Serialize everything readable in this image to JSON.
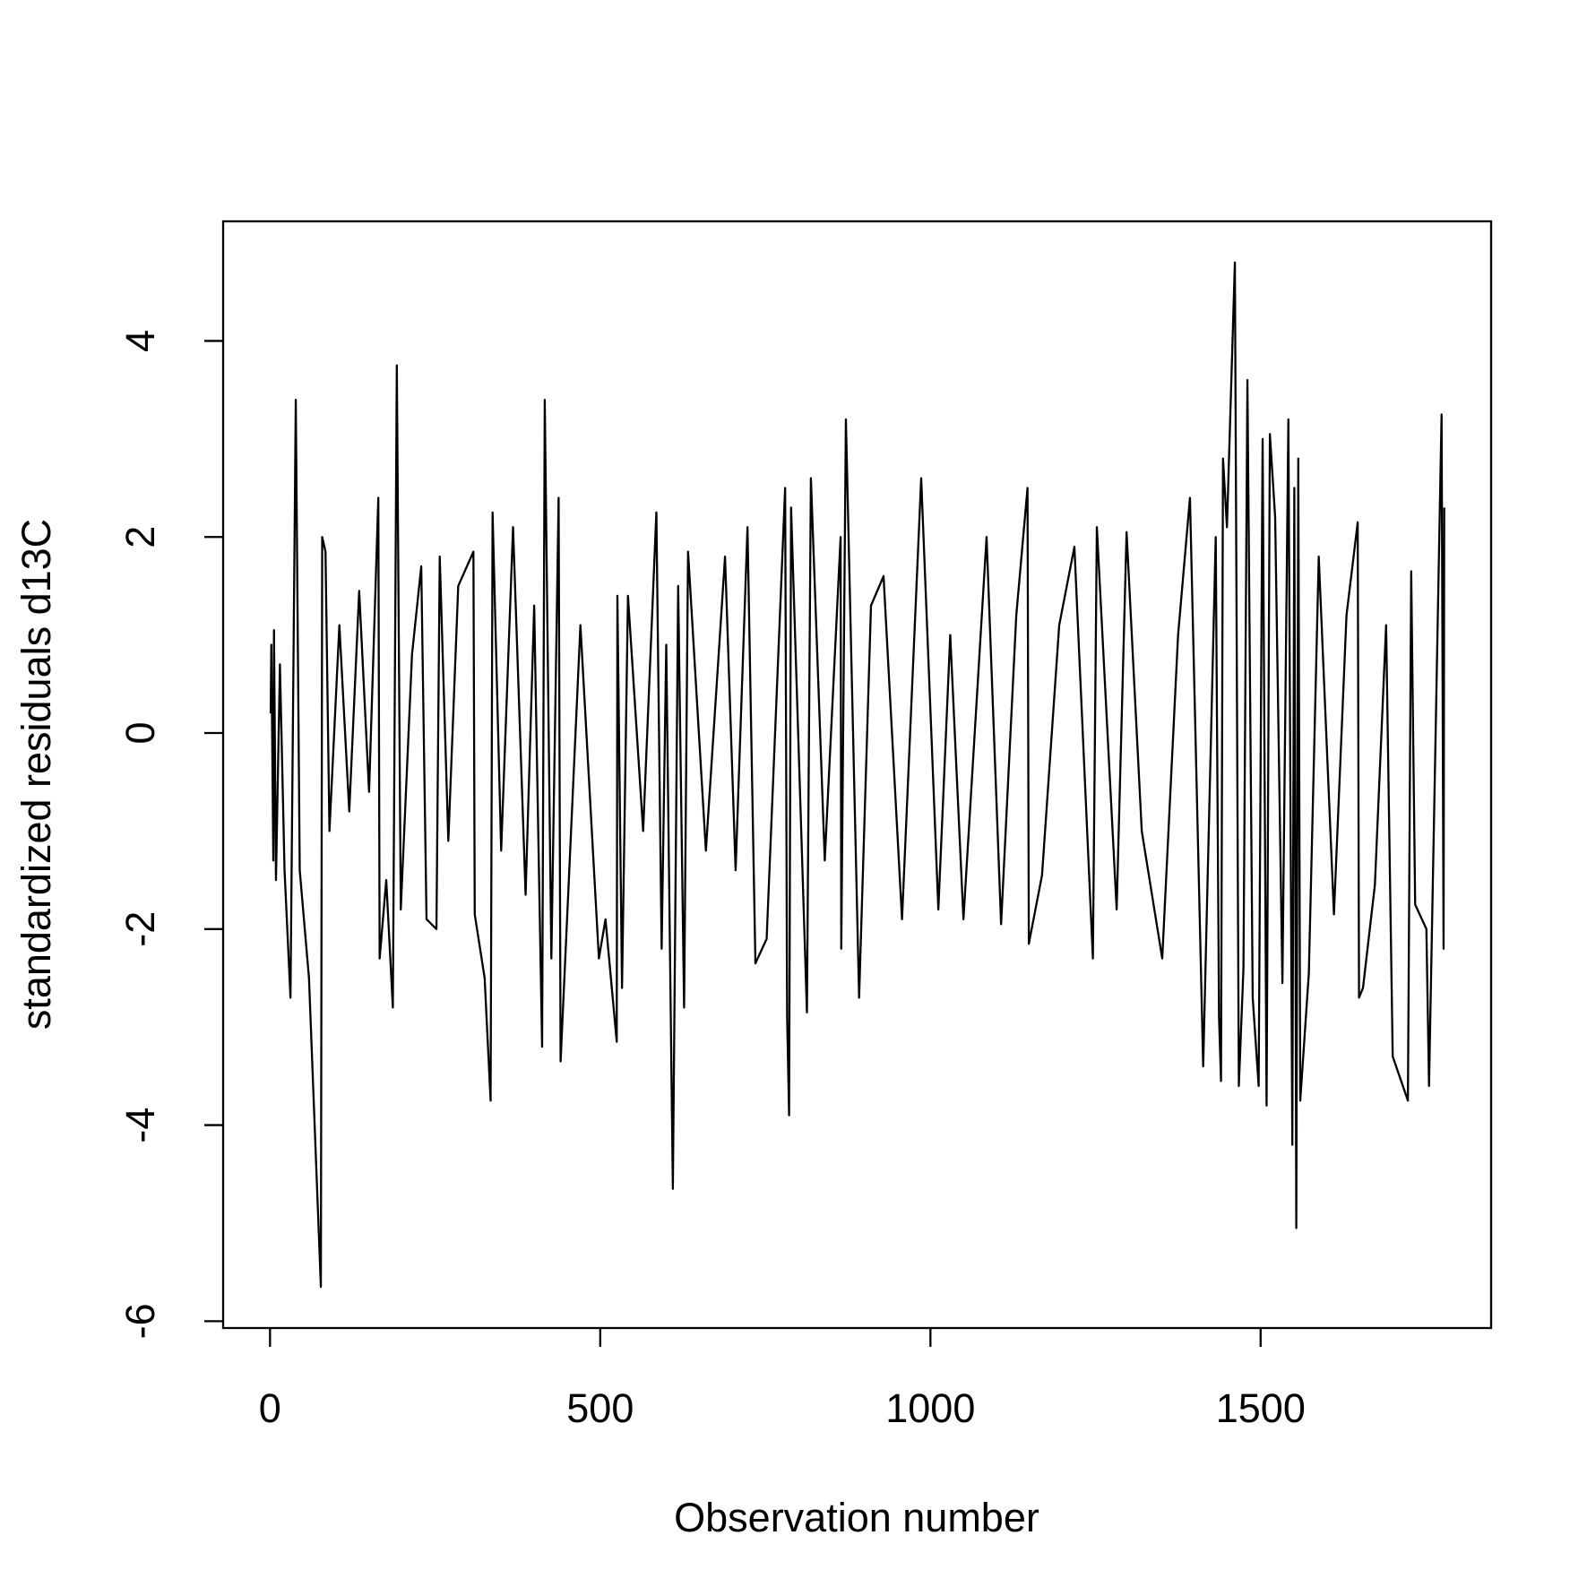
{
  "chart_data": {
    "type": "line",
    "x_label": "Observation number",
    "y_label": "standardized residuals d13C",
    "xlim": [
      -71,
      1849
    ],
    "ylim": [
      -6.07,
      5.22
    ],
    "xticks": [
      0,
      500,
      1000,
      1500
    ],
    "yticks": [
      -6,
      -4,
      -2,
      0,
      2,
      4
    ],
    "color": "#000000",
    "x": [
      1,
      2,
      5,
      6,
      9,
      15,
      22,
      31,
      39,
      45,
      59,
      77,
      79,
      84,
      90,
      105,
      120,
      135,
      150,
      164,
      166,
      176,
      186,
      192,
      198,
      215,
      229,
      237,
      252,
      257,
      270,
      285,
      308,
      310,
      325,
      334,
      337,
      350,
      368,
      387,
      400,
      412,
      416,
      426,
      437,
      440,
      470,
      498,
      508,
      525,
      526,
      533,
      542,
      565,
      585,
      593,
      600,
      610,
      618,
      627,
      633,
      660,
      689,
      705,
      723,
      735,
      752,
      780,
      783,
      786,
      789,
      813,
      819,
      840,
      864,
      865,
      872,
      892,
      910,
      929,
      957,
      986,
      1012,
      1030,
      1050,
      1085,
      1107,
      1130,
      1147,
      1149,
      1169,
      1195,
      1218,
      1246,
      1252,
      1282,
      1297,
      1320,
      1351,
      1375,
      1393,
      1413,
      1432,
      1437,
      1440,
      1443,
      1449,
      1461,
      1467,
      1474,
      1480,
      1488,
      1497,
      1503,
      1509,
      1514,
      1522,
      1533,
      1542,
      1548,
      1551,
      1554,
      1557,
      1560,
      1573,
      1588,
      1611,
      1630,
      1647,
      1649,
      1655,
      1673,
      1690,
      1700,
      1723,
      1728,
      1734,
      1751,
      1755,
      1774,
      1777,
      1778
    ],
    "values": [
      0.2,
      0.9,
      -1.3,
      1.05,
      -1.5,
      0.7,
      -1.4,
      -2.7,
      3.4,
      -1.4,
      -2.5,
      -5.65,
      2.0,
      1.85,
      -1.0,
      1.1,
      -0.8,
      1.45,
      -0.6,
      2.4,
      -2.3,
      -1.5,
      -2.8,
      3.75,
      -1.8,
      0.8,
      1.7,
      -1.9,
      -2.0,
      1.8,
      -1.1,
      1.5,
      1.85,
      -1.85,
      -2.5,
      -3.75,
      2.25,
      -1.2,
      2.1,
      -1.65,
      1.3,
      -3.2,
      3.4,
      -2.3,
      2.4,
      -3.35,
      1.1,
      -2.3,
      -1.9,
      -3.15,
      1.4,
      -2.6,
      1.4,
      -1.0,
      2.25,
      -2.2,
      0.9,
      -4.65,
      1.5,
      -2.8,
      1.85,
      -1.2,
      1.8,
      -1.4,
      2.1,
      -2.35,
      -2.1,
      2.5,
      -2.9,
      -3.9,
      2.3,
      -2.85,
      2.6,
      -1.3,
      2.0,
      -2.2,
      3.2,
      -2.7,
      1.3,
      1.6,
      -1.9,
      2.6,
      -1.8,
      1.0,
      -1.9,
      2.0,
      -1.95,
      1.2,
      2.5,
      -2.15,
      -1.45,
      1.1,
      1.9,
      -2.3,
      2.1,
      -1.8,
      2.05,
      -1.0,
      -2.3,
      1.0,
      2.4,
      -3.4,
      2.0,
      -2.9,
      -3.55,
      2.8,
      2.1,
      4.8,
      -3.6,
      -2.4,
      3.6,
      -2.7,
      -3.6,
      3.0,
      -3.8,
      3.05,
      2.2,
      -2.55,
      3.2,
      -4.2,
      2.5,
      -5.05,
      2.8,
      -3.75,
      -2.45,
      1.8,
      -1.85,
      1.2,
      2.15,
      -2.7,
      -2.6,
      -1.55,
      1.1,
      -3.3,
      -3.75,
      1.65,
      -1.75,
      -2.0,
      -3.6,
      3.25,
      -2.2,
      2.3
    ]
  }
}
